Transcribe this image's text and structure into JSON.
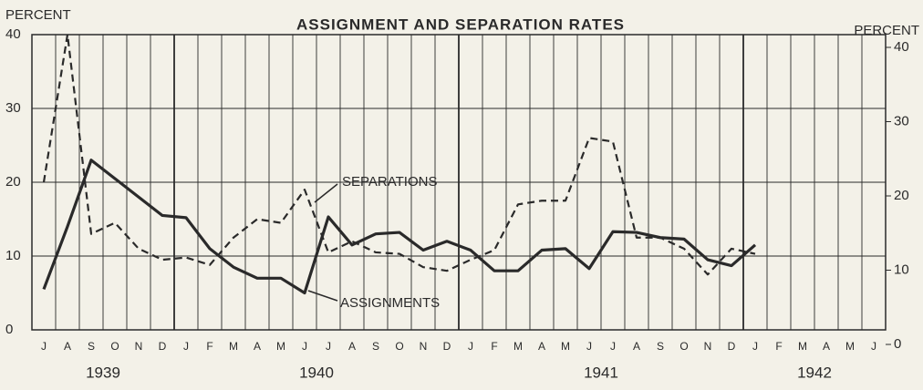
{
  "chart_data": {
    "type": "line",
    "title": "ASSIGNMENT AND SEPARATION RATES",
    "y_axis_label": "PERCENT",
    "y2_axis_label": "PERCENT",
    "categories": [
      "J",
      "A",
      "S",
      "O",
      "N",
      "D",
      "J",
      "F",
      "M",
      "A",
      "M",
      "J",
      "J",
      "A",
      "S",
      "O",
      "N",
      "D",
      "J",
      "F",
      "M",
      "A",
      "M",
      "J",
      "J",
      "A",
      "S",
      "O",
      "N",
      "D",
      "J",
      "F",
      "M",
      "A",
      "M",
      "J"
    ],
    "year_labels": [
      "1939",
      "1940",
      "1941",
      "1942"
    ],
    "series": [
      {
        "name": "ASSIGNMENTS",
        "color": "#2a2a2a",
        "style": "solid",
        "values": [
          5.5,
          14,
          23,
          20.5,
          18,
          15.5,
          15.2,
          11,
          8.5,
          7,
          7,
          5,
          15.3,
          11.5,
          13,
          13.2,
          10.8,
          12,
          10.8,
          8,
          8,
          10.8,
          11,
          8.3,
          13.3,
          13.2,
          12.5,
          12.3,
          9.5,
          8.7,
          11.5,
          null,
          null,
          null,
          null,
          null
        ]
      },
      {
        "name": "SEPARATIONS",
        "color": "#2a2a2a",
        "style": "dashed",
        "values": [
          20,
          40,
          13,
          14.5,
          11,
          9.5,
          9.8,
          8.8,
          12.5,
          15,
          14.5,
          19,
          10.5,
          12,
          10.5,
          10.3,
          8.5,
          8,
          9.5,
          10.8,
          17,
          17.5,
          17.5,
          26,
          25.5,
          12.5,
          12.5,
          11,
          7.5,
          11,
          10.3,
          null,
          null,
          null,
          null,
          null
        ]
      }
    ],
    "ylim": [
      0,
      40
    ],
    "yticks": [
      0,
      10,
      20,
      30,
      40
    ],
    "y2lim": [
      0,
      40
    ],
    "y2ticks": [
      0,
      10,
      20,
      30,
      40
    ],
    "grid": true
  }
}
